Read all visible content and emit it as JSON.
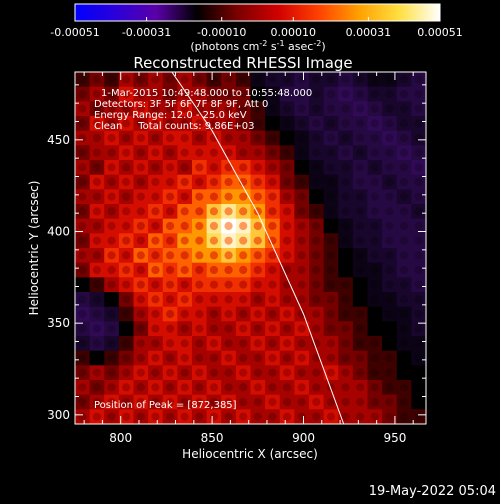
{
  "colorbar": {
    "tick_labels": [
      "-0.00051",
      "-0.00031",
      "-0.00010",
      "0.00010",
      "0.00031",
      "0.00051"
    ],
    "tick_values": [
      -0.00051,
      -0.00031,
      -0.0001,
      0.0001,
      0.00031,
      0.00051
    ],
    "range": [
      -0.00051,
      0.00051
    ],
    "unit_parts": [
      "(photons cm",
      "-2",
      " s",
      "-1",
      " asec",
      "-2",
      ")"
    ],
    "colors": [
      "#0000ff",
      "#2b00d8",
      "#5a00a8",
      "#000000",
      "#7a0000",
      "#d00000",
      "#ff4000",
      "#ffa000",
      "#ffe040",
      "#ffffff"
    ]
  },
  "chart": {
    "title": "Reconstructed RHESSI Image",
    "info_lines": [
      "1-Mar-2015 10:49:48.000 to 10:55:48.000",
      "Detectors: 3F 5F 6F 7F 8F 9F, Att 0",
      "Energy Range: 12.0 - 25.0 keV",
      "Clean     Total counts: 9.86E+03"
    ],
    "peak_label": "Position of Peak = [872,385]",
    "footer_timestamp": "19-May-2022 05:04"
  },
  "chart_data": {
    "type": "heatmap",
    "title": "Reconstructed RHESSI Image",
    "xlabel": "Heliocentric X (arcsec)",
    "ylabel": "Heliocentric Y (arcsec)",
    "xlim": [
      775,
      967
    ],
    "ylim": [
      295,
      487
    ],
    "x_ticks": [
      800,
      850,
      900,
      950
    ],
    "y_ticks": [
      300,
      350,
      400,
      450
    ],
    "x_tick_labels": [
      "800",
      "850",
      "900",
      "950"
    ],
    "y_tick_labels": [
      "300",
      "350",
      "400",
      "450"
    ],
    "peak": [
      872,
      385
    ],
    "limb_line": [
      [
        828,
        487
      ],
      [
        850,
        455
      ],
      [
        875,
        410
      ],
      [
        900,
        355
      ],
      [
        922,
        295
      ]
    ],
    "cells": {
      "rows": 24,
      "cols": 24,
      "min": -1,
      "max": 1,
      "values": [
        [
          0.1,
          0.2,
          0.1,
          0.3,
          0.2,
          0.3,
          0.2,
          0.3,
          0.2,
          0.1,
          0.2,
          0.1,
          -0.1,
          -0.2,
          -0.2,
          -0.3,
          -0.2,
          -0.2,
          -0.3,
          -0.2,
          -0.1,
          -0.1,
          -0.2,
          -0.3
        ],
        [
          0.2,
          0.3,
          0.2,
          0.4,
          0.3,
          0.3,
          0.2,
          0.3,
          0.3,
          0.2,
          0.2,
          0.2,
          0.0,
          -0.1,
          -0.3,
          -0.3,
          -0.2,
          -0.3,
          -0.4,
          -0.3,
          -0.2,
          -0.2,
          -0.3,
          -0.3
        ],
        [
          0.3,
          0.2,
          0.3,
          0.3,
          0.4,
          0.3,
          0.3,
          0.4,
          0.3,
          0.3,
          0.3,
          0.2,
          0.1,
          -0.1,
          -0.2,
          -0.3,
          -0.2,
          -0.3,
          -0.3,
          -0.4,
          -0.3,
          -0.2,
          -0.2,
          -0.3
        ],
        [
          0.2,
          0.4,
          0.3,
          0.4,
          0.3,
          0.4,
          0.3,
          0.3,
          0.4,
          0.3,
          0.3,
          0.2,
          0.1,
          0.0,
          -0.1,
          -0.2,
          -0.3,
          -0.2,
          -0.3,
          -0.3,
          -0.4,
          -0.3,
          -0.2,
          -0.2
        ],
        [
          0.3,
          0.3,
          0.4,
          0.3,
          0.4,
          0.3,
          0.4,
          0.4,
          0.3,
          0.4,
          0.3,
          0.3,
          0.2,
          0.1,
          0.0,
          -0.1,
          -0.2,
          -0.3,
          -0.2,
          -0.3,
          -0.3,
          -0.4,
          -0.3,
          -0.2
        ],
        [
          0.2,
          0.3,
          0.3,
          0.4,
          0.3,
          0.4,
          0.3,
          0.4,
          0.4,
          0.4,
          0.4,
          0.3,
          0.3,
          0.2,
          0.1,
          -0.1,
          -0.2,
          -0.2,
          -0.3,
          -0.2,
          -0.3,
          -0.3,
          -0.4,
          -0.3
        ],
        [
          0.3,
          0.2,
          0.4,
          0.3,
          0.4,
          0.3,
          0.4,
          0.3,
          0.5,
          0.4,
          0.5,
          0.5,
          0.4,
          0.3,
          0.2,
          0.0,
          -0.1,
          -0.2,
          -0.2,
          -0.3,
          -0.2,
          -0.3,
          -0.3,
          -0.4
        ],
        [
          0.2,
          0.4,
          0.3,
          0.4,
          0.3,
          0.4,
          0.4,
          0.5,
          0.4,
          0.5,
          0.6,
          0.6,
          0.5,
          0.4,
          0.2,
          0.1,
          -0.1,
          -0.1,
          -0.2,
          -0.3,
          -0.3,
          -0.2,
          -0.3,
          -0.3
        ],
        [
          0.3,
          0.3,
          0.4,
          0.3,
          0.4,
          0.4,
          0.5,
          0.4,
          0.6,
          0.6,
          0.7,
          0.7,
          0.6,
          0.5,
          0.3,
          0.2,
          0.0,
          -0.1,
          -0.2,
          -0.2,
          -0.3,
          -0.3,
          -0.2,
          -0.3
        ],
        [
          0.2,
          0.4,
          0.3,
          0.4,
          0.4,
          0.5,
          0.4,
          0.6,
          0.6,
          0.8,
          0.9,
          0.8,
          0.7,
          0.5,
          0.4,
          0.2,
          0.1,
          -0.1,
          -0.2,
          -0.2,
          -0.3,
          -0.3,
          -0.3,
          -0.2
        ],
        [
          0.3,
          0.3,
          0.4,
          0.4,
          0.5,
          0.4,
          0.6,
          0.6,
          0.7,
          0.9,
          1.0,
          0.95,
          0.8,
          0.6,
          0.4,
          0.3,
          0.2,
          0.0,
          -0.1,
          -0.2,
          -0.2,
          -0.3,
          -0.3,
          -0.3
        ],
        [
          0.2,
          0.4,
          0.4,
          0.5,
          0.4,
          0.6,
          0.5,
          0.7,
          0.7,
          0.85,
          0.95,
          0.9,
          0.8,
          0.6,
          0.4,
          0.3,
          0.2,
          0.1,
          -0.1,
          -0.2,
          -0.2,
          -0.3,
          -0.3,
          -0.3
        ],
        [
          0.3,
          0.3,
          0.5,
          0.4,
          0.6,
          0.5,
          0.6,
          0.6,
          0.7,
          0.7,
          0.8,
          0.7,
          0.6,
          0.5,
          0.4,
          0.3,
          0.2,
          0.1,
          0.0,
          -0.1,
          -0.2,
          -0.2,
          -0.3,
          -0.3
        ],
        [
          0.2,
          0.4,
          0.4,
          0.5,
          0.4,
          0.6,
          0.5,
          0.6,
          0.5,
          0.6,
          0.6,
          0.6,
          0.5,
          0.4,
          0.3,
          0.3,
          0.2,
          0.1,
          0.0,
          -0.1,
          -0.1,
          -0.2,
          -0.3,
          -0.3
        ],
        [
          0.0,
          0.1,
          0.3,
          0.4,
          0.5,
          0.4,
          0.5,
          0.4,
          0.5,
          0.5,
          0.5,
          0.5,
          0.4,
          0.4,
          0.3,
          0.3,
          0.2,
          0.1,
          0.1,
          0.0,
          -0.1,
          -0.2,
          -0.2,
          -0.3
        ],
        [
          -0.3,
          -0.2,
          0.0,
          0.2,
          0.4,
          0.5,
          0.4,
          0.5,
          0.4,
          0.4,
          0.4,
          0.4,
          0.3,
          0.4,
          0.3,
          0.3,
          0.2,
          0.2,
          0.1,
          0.0,
          -0.1,
          -0.1,
          -0.2,
          -0.2
        ],
        [
          -0.4,
          -0.3,
          -0.2,
          0.1,
          0.3,
          0.4,
          0.5,
          0.4,
          0.4,
          0.3,
          0.4,
          0.3,
          0.4,
          0.3,
          0.4,
          0.3,
          0.3,
          0.2,
          0.1,
          0.1,
          0.0,
          -0.1,
          -0.1,
          -0.2
        ],
        [
          -0.3,
          -0.4,
          -0.3,
          0.0,
          0.2,
          0.4,
          0.4,
          0.3,
          0.4,
          0.3,
          0.3,
          0.4,
          0.3,
          0.4,
          0.3,
          0.4,
          0.3,
          0.2,
          0.2,
          0.1,
          0.0,
          0.0,
          -0.1,
          -0.2
        ],
        [
          -0.2,
          -0.3,
          -0.2,
          0.1,
          0.3,
          0.3,
          0.4,
          0.4,
          0.3,
          0.4,
          0.3,
          0.3,
          0.4,
          0.3,
          0.4,
          0.3,
          0.3,
          0.3,
          0.2,
          0.1,
          0.1,
          0.0,
          -0.1,
          -0.1
        ],
        [
          0.1,
          0.0,
          0.1,
          0.2,
          0.3,
          0.4,
          0.3,
          0.4,
          0.3,
          0.3,
          0.4,
          0.3,
          0.3,
          0.4,
          0.3,
          0.4,
          0.3,
          0.3,
          0.2,
          0.2,
          0.1,
          0.1,
          0.0,
          -0.1
        ],
        [
          0.2,
          0.3,
          0.2,
          0.3,
          0.4,
          0.3,
          0.4,
          0.3,
          0.4,
          0.3,
          0.3,
          0.4,
          0.3,
          0.3,
          0.4,
          0.3,
          0.3,
          0.4,
          0.3,
          0.2,
          0.1,
          0.1,
          0.0,
          0.0
        ],
        [
          0.3,
          0.2,
          0.3,
          0.4,
          0.3,
          0.4,
          0.3,
          0.4,
          0.3,
          0.4,
          0.3,
          0.3,
          0.4,
          0.3,
          0.3,
          0.4,
          0.3,
          0.3,
          0.3,
          0.3,
          0.2,
          0.1,
          0.1,
          0.0
        ],
        [
          0.2,
          0.3,
          0.4,
          0.3,
          0.4,
          0.3,
          0.4,
          0.3,
          0.4,
          0.3,
          0.4,
          0.3,
          0.3,
          0.4,
          0.3,
          0.3,
          0.4,
          0.3,
          0.3,
          0.3,
          0.2,
          0.2,
          0.1,
          0.0
        ],
        [
          0.3,
          0.4,
          0.3,
          0.4,
          0.3,
          0.4,
          0.3,
          0.4,
          0.3,
          0.4,
          0.3,
          0.4,
          0.3,
          0.3,
          0.4,
          0.3,
          0.3,
          0.4,
          0.3,
          0.3,
          0.3,
          0.2,
          0.1,
          0.1
        ]
      ]
    }
  }
}
